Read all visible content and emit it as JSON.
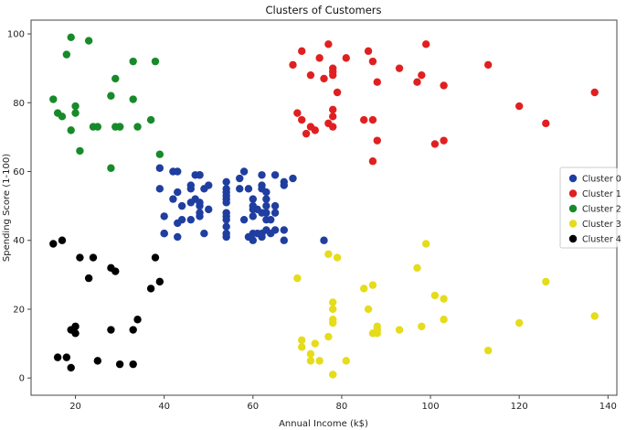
{
  "chart_data": {
    "type": "scatter",
    "title": "Clusters of Customers",
    "xlabel": "Annual Income (k$)",
    "ylabel": "Spending Score (1-100)",
    "xlim": [
      10,
      142
    ],
    "ylim": [
      -5,
      104
    ],
    "xticks": [
      20,
      40,
      60,
      80,
      100,
      120,
      140
    ],
    "yticks": [
      0,
      20,
      40,
      60,
      80,
      100
    ],
    "grid": false,
    "legend_position": "right",
    "series": [
      {
        "name": "Cluster 0",
        "color": "#1f3ea0",
        "points": [
          [
            39,
            61
          ],
          [
            39,
            55
          ],
          [
            40,
            47
          ],
          [
            40,
            42
          ],
          [
            40,
            42
          ],
          [
            42,
            52
          ],
          [
            42,
            60
          ],
          [
            43,
            54
          ],
          [
            43,
            60
          ],
          [
            43,
            45
          ],
          [
            43,
            41
          ],
          [
            44,
            50
          ],
          [
            44,
            46
          ],
          [
            46,
            51
          ],
          [
            46,
            46
          ],
          [
            46,
            56
          ],
          [
            46,
            55
          ],
          [
            47,
            52
          ],
          [
            47,
            59
          ],
          [
            48,
            51
          ],
          [
            48,
            59
          ],
          [
            48,
            50
          ],
          [
            48,
            48
          ],
          [
            48,
            59
          ],
          [
            48,
            47
          ],
          [
            49,
            55
          ],
          [
            49,
            42
          ],
          [
            50,
            49
          ],
          [
            50,
            56
          ],
          [
            54,
            47
          ],
          [
            54,
            54
          ],
          [
            54,
            53
          ],
          [
            54,
            48
          ],
          [
            54,
            52
          ],
          [
            54,
            42
          ],
          [
            54,
            51
          ],
          [
            54,
            55
          ],
          [
            54,
            41
          ],
          [
            54,
            44
          ],
          [
            54,
            57
          ],
          [
            54,
            46
          ],
          [
            57,
            58
          ],
          [
            57,
            55
          ],
          [
            58,
            60
          ],
          [
            58,
            46
          ],
          [
            59,
            55
          ],
          [
            59,
            41
          ],
          [
            60,
            49
          ],
          [
            60,
            40
          ],
          [
            60,
            42
          ],
          [
            60,
            52
          ],
          [
            60,
            47
          ],
          [
            60,
            50
          ],
          [
            61,
            42
          ],
          [
            61,
            49
          ],
          [
            62,
            41
          ],
          [
            62,
            48
          ],
          [
            62,
            59
          ],
          [
            62,
            55
          ],
          [
            62,
            56
          ],
          [
            62,
            42
          ],
          [
            63,
            50
          ],
          [
            63,
            46
          ],
          [
            63,
            43
          ],
          [
            63,
            48
          ],
          [
            63,
            52
          ],
          [
            63,
            54
          ],
          [
            64,
            42
          ],
          [
            64,
            46
          ],
          [
            65,
            48
          ],
          [
            65,
            50
          ],
          [
            65,
            43
          ],
          [
            65,
            59
          ],
          [
            67,
            43
          ],
          [
            67,
            57
          ],
          [
            67,
            56
          ],
          [
            67,
            40
          ],
          [
            69,
            58
          ],
          [
            76,
            40
          ]
        ]
      },
      {
        "name": "Cluster 1",
        "color": "#e02020",
        "points": [
          [
            69,
            91
          ],
          [
            70,
            77
          ],
          [
            71,
            95
          ],
          [
            71,
            75
          ],
          [
            72,
            71
          ],
          [
            73,
            88
          ],
          [
            73,
            73
          ],
          [
            74,
            72
          ],
          [
            75,
            93
          ],
          [
            76,
            87
          ],
          [
            77,
            97
          ],
          [
            77,
            74
          ],
          [
            78,
            90
          ],
          [
            78,
            76
          ],
          [
            78,
            88
          ],
          [
            78,
            89
          ],
          [
            78,
            78
          ],
          [
            78,
            73
          ],
          [
            79,
            83
          ],
          [
            81,
            93
          ],
          [
            85,
            75
          ],
          [
            86,
            95
          ],
          [
            87,
            63
          ],
          [
            87,
            75
          ],
          [
            87,
            92
          ],
          [
            88,
            86
          ],
          [
            88,
            69
          ],
          [
            93,
            90
          ],
          [
            97,
            86
          ],
          [
            98,
            88
          ],
          [
            99,
            97
          ],
          [
            101,
            68
          ],
          [
            103,
            85
          ],
          [
            103,
            69
          ],
          [
            113,
            91
          ],
          [
            120,
            79
          ],
          [
            126,
            74
          ],
          [
            137,
            83
          ]
        ]
      },
      {
        "name": "Cluster 2",
        "color": "#178a2a",
        "points": [
          [
            15,
            81
          ],
          [
            16,
            77
          ],
          [
            17,
            76
          ],
          [
            18,
            94
          ],
          [
            19,
            72
          ],
          [
            19,
            99
          ],
          [
            20,
            77
          ],
          [
            20,
            79
          ],
          [
            21,
            66
          ],
          [
            23,
            98
          ],
          [
            24,
            73
          ],
          [
            25,
            73
          ],
          [
            28,
            82
          ],
          [
            28,
            61
          ],
          [
            29,
            87
          ],
          [
            29,
            73
          ],
          [
            30,
            73
          ],
          [
            30,
            73
          ],
          [
            33,
            92
          ],
          [
            33,
            81
          ],
          [
            34,
            73
          ],
          [
            37,
            75
          ],
          [
            38,
            92
          ],
          [
            39,
            65
          ]
        ]
      },
      {
        "name": "Cluster 3",
        "color": "#e5dc1a",
        "points": [
          [
            70,
            29
          ],
          [
            71,
            11
          ],
          [
            71,
            9
          ],
          [
            73,
            5
          ],
          [
            73,
            7
          ],
          [
            74,
            10
          ],
          [
            75,
            5
          ],
          [
            77,
            12
          ],
          [
            77,
            36
          ],
          [
            78,
            22
          ],
          [
            78,
            17
          ],
          [
            78,
            20
          ],
          [
            78,
            16
          ],
          [
            78,
            1
          ],
          [
            78,
            1
          ],
          [
            79,
            35
          ],
          [
            81,
            5
          ],
          [
            85,
            26
          ],
          [
            86,
            20
          ],
          [
            87,
            27
          ],
          [
            87,
            13
          ],
          [
            88,
            13
          ],
          [
            88,
            15
          ],
          [
            88,
            14
          ],
          [
            93,
            14
          ],
          [
            97,
            32
          ],
          [
            98,
            15
          ],
          [
            99,
            39
          ],
          [
            101,
            24
          ],
          [
            103,
            17
          ],
          [
            103,
            23
          ],
          [
            113,
            8
          ],
          [
            120,
            16
          ],
          [
            126,
            28
          ],
          [
            137,
            18
          ]
        ]
      },
      {
        "name": "Cluster 4",
        "color": "#000000",
        "points": [
          [
            15,
            39
          ],
          [
            16,
            6
          ],
          [
            17,
            40
          ],
          [
            18,
            6
          ],
          [
            19,
            3
          ],
          [
            19,
            14
          ],
          [
            20,
            15
          ],
          [
            20,
            13
          ],
          [
            21,
            35
          ],
          [
            23,
            29
          ],
          [
            24,
            35
          ],
          [
            25,
            5
          ],
          [
            28,
            14
          ],
          [
            28,
            32
          ],
          [
            29,
            31
          ],
          [
            30,
            4
          ],
          [
            33,
            4
          ],
          [
            33,
            14
          ],
          [
            34,
            17
          ],
          [
            37,
            26
          ],
          [
            38,
            35
          ],
          [
            39,
            28
          ]
        ]
      }
    ]
  }
}
